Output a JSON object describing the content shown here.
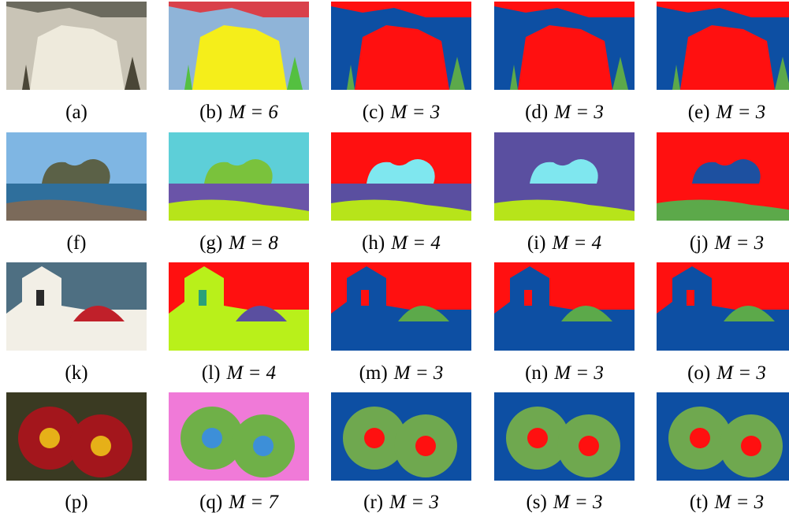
{
  "figure": {
    "panels": [
      {
        "tag": "(a)"
      },
      {
        "tag": "(b)",
        "eq": "M = 6"
      },
      {
        "tag": "(c)",
        "eq": "M = 3"
      },
      {
        "tag": "(d)",
        "eq": "M = 3"
      },
      {
        "tag": "(e)",
        "eq": "M = 3"
      },
      {
        "tag": "(f)"
      },
      {
        "tag": "(g)",
        "eq": "M = 8"
      },
      {
        "tag": "(h)",
        "eq": "M = 4"
      },
      {
        "tag": "(i)",
        "eq": "M = 4"
      },
      {
        "tag": "(j)",
        "eq": "M = 3"
      },
      {
        "tag": "(k)"
      },
      {
        "tag": "(l)",
        "eq": "M = 4"
      },
      {
        "tag": "(m)",
        "eq": "M = 3"
      },
      {
        "tag": "(n)",
        "eq": "M = 3"
      },
      {
        "tag": "(o)",
        "eq": "M = 3"
      },
      {
        "tag": "(p)"
      },
      {
        "tag": "(q)",
        "eq": "M = 7"
      },
      {
        "tag": "(r)",
        "eq": "M = 3"
      },
      {
        "tag": "(s)",
        "eq": "M = 3"
      },
      {
        "tag": "(t)",
        "eq": "M = 3"
      }
    ]
  }
}
